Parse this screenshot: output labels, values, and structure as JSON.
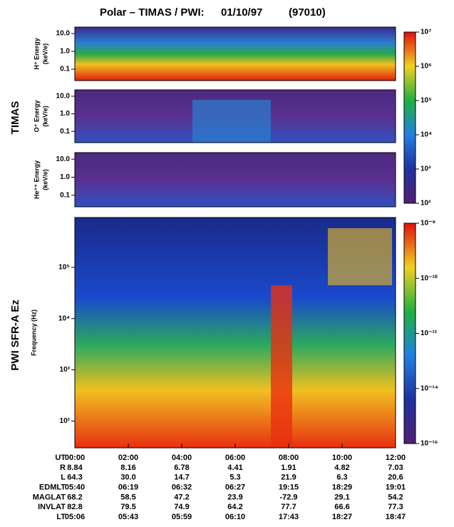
{
  "title": {
    "instrument": "Polar – TIMAS / PWI:",
    "date": "01/10/97",
    "day": "(97010)"
  },
  "group_labels": [
    "TIMAS",
    "PWI SFR-A Ez"
  ],
  "chart_data": [
    {
      "type": "heatmap",
      "ylabel": [
        "H⁺ Energy",
        "(keV/e)"
      ],
      "ylog": true,
      "ylim": [
        0.023,
        23
      ],
      "xlim": [
        0,
        12
      ],
      "yticks": [
        {
          "value": 10,
          "label": "10.0"
        },
        {
          "value": 1,
          "label": "1.0"
        },
        0.1
      ]
    },
    {
      "type": "heatmap",
      "ylabel": [
        "O⁺ Energy",
        "(keV/e)"
      ],
      "ylog": true,
      "ylim": [
        0.023,
        23
      ],
      "xlim": [
        0,
        12
      ],
      "yticks": [
        {
          "value": 10,
          "label": "10.0"
        },
        {
          "value": 1,
          "label": "1.0"
        },
        0.1
      ]
    },
    {
      "type": "heatmap",
      "ylabel": [
        "He⁺⁺ Energy",
        "(keV/e)"
      ],
      "ylog": true,
      "ylim": [
        0.023,
        23
      ],
      "xlim": [
        0,
        12
      ],
      "yticks": [
        {
          "value": 10,
          "label": "10.0"
        },
        {
          "value": 1,
          "label": "1.0"
        },
        0.1
      ]
    },
    {
      "type": "heatmap",
      "ylabel": [
        "Frequency (Hz)"
      ],
      "ylog": true,
      "ylim": [
        30,
        940000
      ],
      "xlim": [
        0,
        12
      ],
      "xlabel": "UT",
      "yticks": [
        {
          "value": 100000,
          "label": "10⁵"
        },
        {
          "value": 10000,
          "label": "10⁴"
        },
        {
          "value": 1000,
          "label": "10³"
        },
        {
          "value": 100,
          "label": "10²"
        }
      ],
      "xticks": [
        {
          "value": 0,
          "label": "00:00"
        },
        {
          "value": 2,
          "label": "02:00"
        },
        {
          "value": 4,
          "label": "04:00"
        },
        {
          "value": 6,
          "label": "06:00"
        },
        {
          "value": 8,
          "label": "08:00"
        },
        {
          "value": 10,
          "label": "10:00"
        },
        {
          "value": 12,
          "label": "12:00"
        }
      ]
    }
  ],
  "colorbars": [
    {
      "lim": [
        100,
        10000000
      ],
      "log": true,
      "ticks": [
        {
          "value": 10000000,
          "label": "10⁷"
        },
        {
          "value": 1000000,
          "label": "10⁶"
        },
        {
          "value": 100000,
          "label": "10⁵"
        },
        {
          "value": 10000,
          "label": "10⁴"
        },
        {
          "value": 1000,
          "label": "10³"
        },
        {
          "value": 100,
          "label": "10²"
        }
      ]
    },
    {
      "lim": [
        1e-16,
        1e-08
      ],
      "log": true,
      "ticks": [
        {
          "value": 1e-08,
          "label": "10⁻⁸"
        },
        {
          "value": 1e-10,
          "label": "10⁻¹⁰"
        },
        {
          "value": 1e-12,
          "label": "10⁻¹²"
        },
        {
          "value": 1e-14,
          "label": "10⁻¹⁴"
        },
        {
          "value": 1e-16,
          "label": "10⁻¹⁶"
        }
      ]
    }
  ],
  "ephemeris": {
    "rows": [
      {
        "label": "R",
        "values": [
          "8.84",
          "8.16",
          "6.78",
          "4.41",
          "1.91",
          "4.82",
          "7.03"
        ]
      },
      {
        "label": "L",
        "values": [
          "64.3",
          "30.0",
          "14.7",
          "5.3",
          "21.9",
          "6.3",
          "20.6"
        ]
      },
      {
        "label": "EDMLT",
        "values": [
          "05:40",
          "06:19",
          "06:32",
          "06:27",
          "19:15",
          "18:29",
          "19:01"
        ]
      },
      {
        "label": "MAGLAT",
        "values": [
          "68.2",
          "58.5",
          "47.2",
          "23.9",
          "-72.9",
          "29.1",
          "54.2"
        ]
      },
      {
        "label": "INVLAT",
        "values": [
          "82.8",
          "79.5",
          "74.9",
          "64.2",
          "77.7",
          "66.6",
          "77.3"
        ]
      },
      {
        "label": "LT",
        "values": [
          "05:06",
          "05:43",
          "05:59",
          "06:10",
          "17:43",
          "18:27",
          "18:47"
        ]
      }
    ]
  }
}
